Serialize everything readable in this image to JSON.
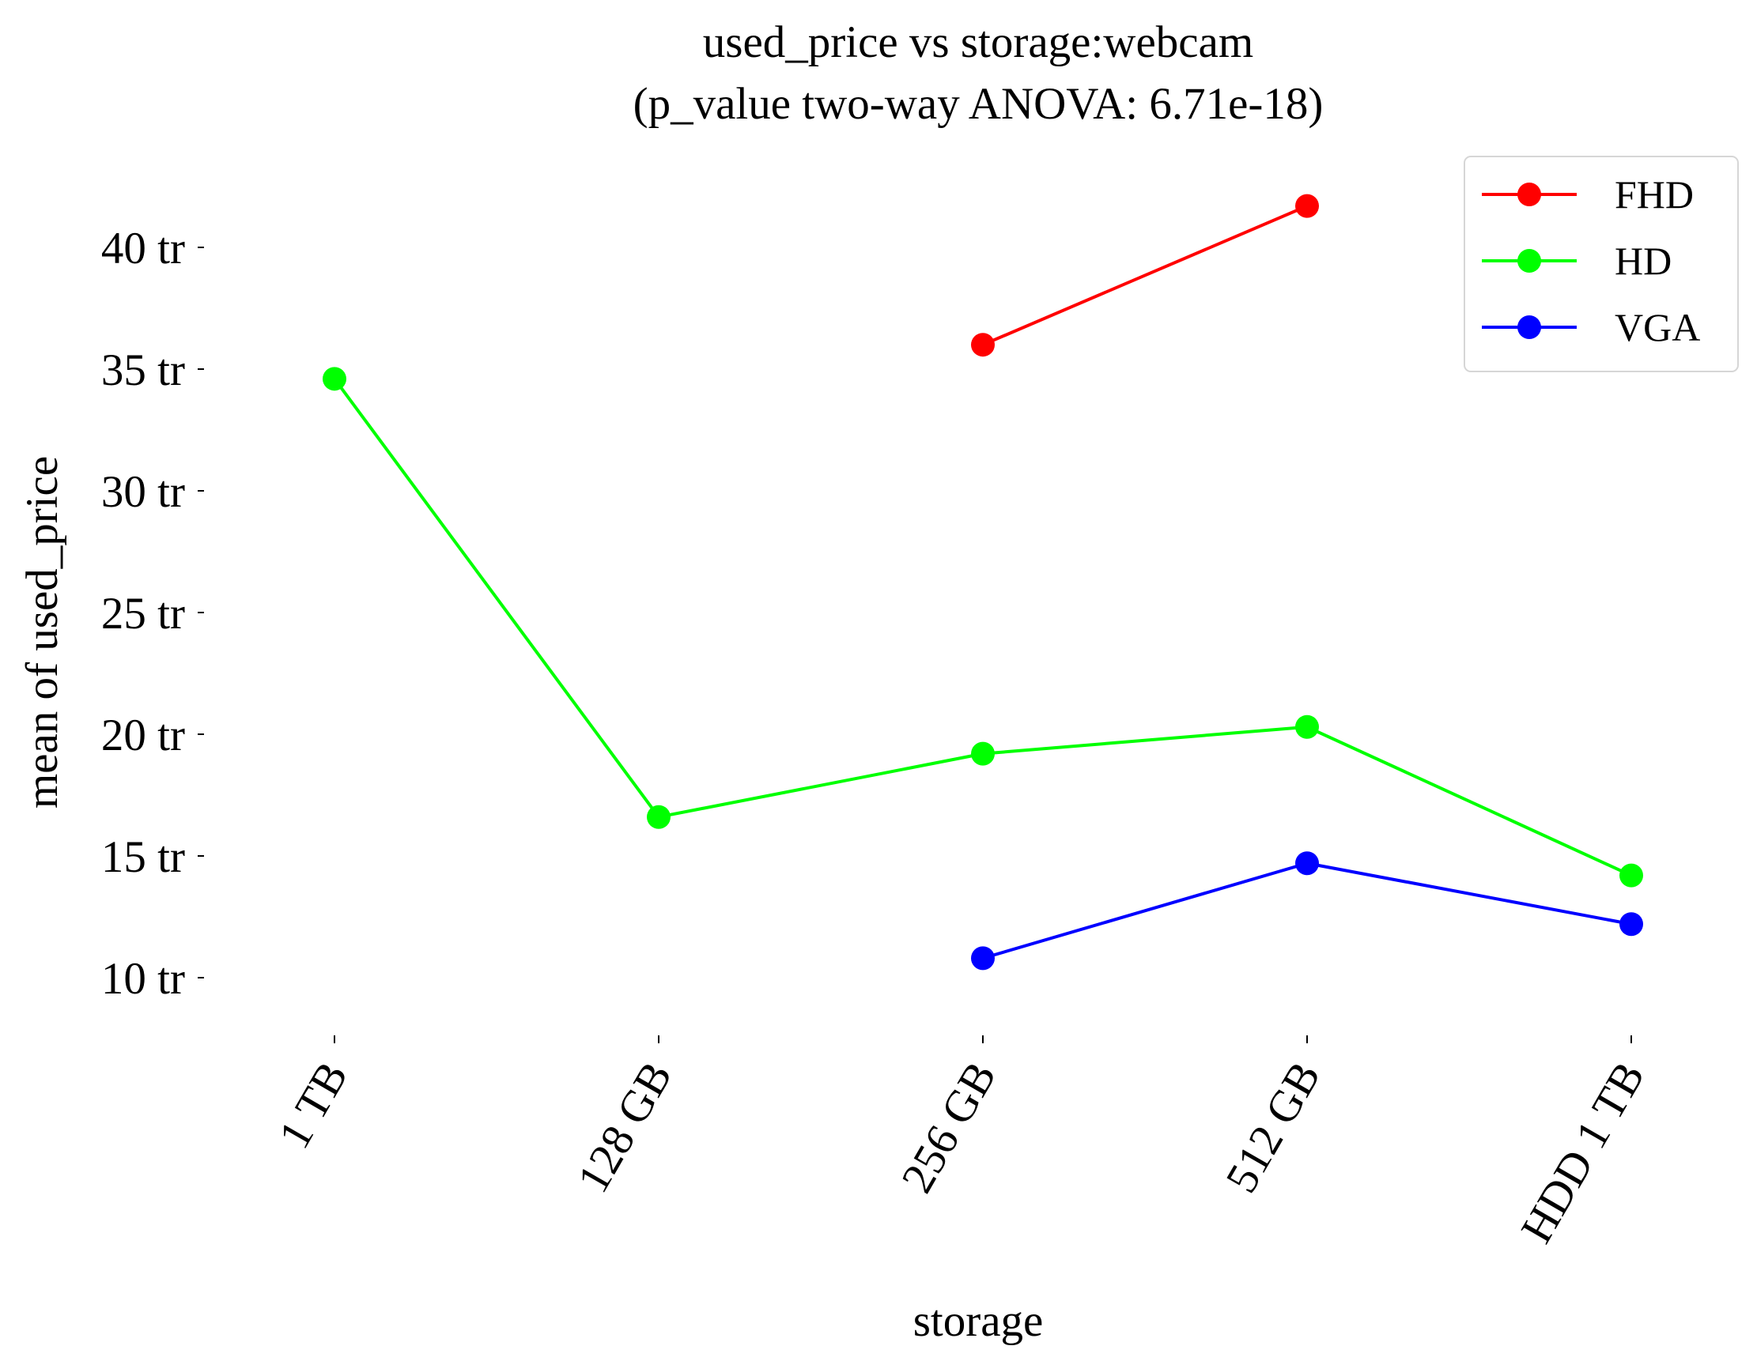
{
  "chart_data": {
    "type": "line",
    "title": "used_price vs storage:webcam",
    "subtitle": "(p_value two-way ANOVA: 6.71e-18)",
    "xlabel": "storage",
    "ylabel": "mean of used_price",
    "categories": [
      "1 TB",
      "128 GB",
      "256 GB",
      "512 GB",
      "HDD 1 TB"
    ],
    "yticks": [
      10,
      15,
      20,
      25,
      30,
      35,
      40
    ],
    "ytick_labels": [
      "10 tr",
      "15 tr",
      "20 tr",
      "25 tr",
      "30 tr",
      "35 tr",
      "40 tr"
    ],
    "ylim": [
      8,
      43
    ],
    "grid": false,
    "legend_position": "top-right",
    "series": [
      {
        "name": "FHD",
        "color": "#ff0000",
        "values": [
          null,
          null,
          36.0,
          41.7,
          null
        ]
      },
      {
        "name": "HD",
        "color": "#00ff00",
        "values": [
          34.6,
          16.6,
          19.2,
          20.3,
          14.2
        ]
      },
      {
        "name": "VGA",
        "color": "#0000ff",
        "values": [
          null,
          null,
          10.8,
          14.7,
          12.2
        ]
      }
    ]
  }
}
